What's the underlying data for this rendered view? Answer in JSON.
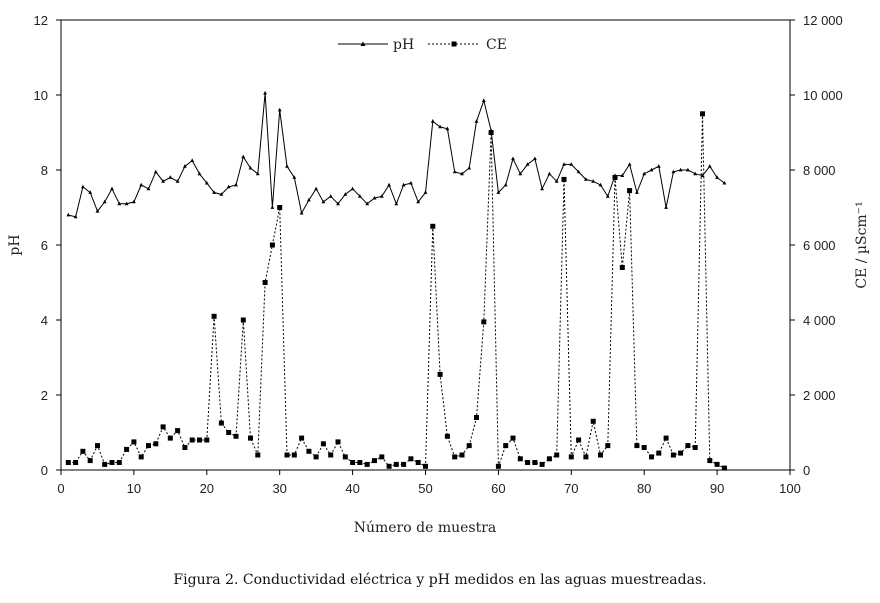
{
  "caption": "Figura 2. Conductividad eléctrica y pH medidos en las aguas muestreadas.",
  "chart_data": {
    "type": "line",
    "xlabel": "Número de muestra",
    "ylabel_left": "pH",
    "ylabel_right": "CE / µScm⁻¹",
    "xlim": [
      0,
      100
    ],
    "ylim_left": [
      0,
      12
    ],
    "ylim_right": [
      0,
      12000
    ],
    "xticks": [
      "0",
      "10",
      "20",
      "30",
      "40",
      "50",
      "60",
      "70",
      "80",
      "90",
      "100"
    ],
    "yticks_left": [
      "0",
      "2",
      "4",
      "6",
      "8",
      "10",
      "12"
    ],
    "yticks_right": [
      "0",
      "2 000",
      "4 000",
      "6 000",
      "8 000",
      "10 000",
      "12 000"
    ],
    "grid": false,
    "legend_position": "top-center",
    "series": [
      {
        "name": "pH",
        "axis": "left",
        "style": "solid",
        "marker": "triangle",
        "color": "#000000",
        "x": [
          1,
          2,
          3,
          4,
          5,
          6,
          7,
          8,
          9,
          10,
          11,
          12,
          13,
          14,
          15,
          16,
          17,
          18,
          19,
          20,
          21,
          22,
          23,
          24,
          25,
          26,
          27,
          28,
          29,
          30,
          31,
          32,
          33,
          34,
          35,
          36,
          37,
          38,
          39,
          40,
          41,
          42,
          43,
          44,
          45,
          46,
          47,
          48,
          49,
          50,
          51,
          52,
          53,
          54,
          55,
          56,
          57,
          58,
          59,
          60,
          61,
          62,
          63,
          64,
          65,
          66,
          67,
          68,
          69,
          70,
          71,
          72,
          73,
          74,
          75,
          76,
          77,
          78,
          79,
          80,
          81,
          82,
          83,
          84,
          85,
          86,
          87,
          88,
          89,
          90,
          91
        ],
        "values": [
          6.8,
          6.75,
          7.55,
          7.4,
          6.9,
          7.15,
          7.5,
          7.1,
          7.1,
          7.15,
          7.6,
          7.5,
          7.95,
          7.7,
          7.8,
          7.7,
          8.1,
          8.25,
          7.9,
          7.65,
          7.4,
          7.35,
          7.55,
          7.6,
          8.35,
          8.05,
          7.9,
          10.05,
          7.0,
          9.6,
          8.1,
          7.8,
          6.85,
          7.2,
          7.5,
          7.15,
          7.3,
          7.1,
          7.35,
          7.5,
          7.3,
          7.1,
          7.25,
          7.3,
          7.6,
          7.1,
          7.6,
          7.65,
          7.15,
          7.4,
          9.3,
          9.15,
          9.1,
          7.95,
          7.9,
          8.05,
          9.3,
          9.85,
          9.05,
          7.4,
          7.6,
          8.3,
          7.9,
          8.15,
          8.3,
          7.5,
          7.9,
          7.7,
          8.15,
          8.15,
          7.95,
          7.75,
          7.7,
          7.6,
          7.3,
          7.85,
          7.85,
          8.15,
          7.4,
          7.9,
          8.0,
          8.1,
          7.0,
          7.95,
          8.0,
          8.0,
          7.9,
          7.85,
          8.1,
          7.8,
          7.65
        ]
      },
      {
        "name": "CE",
        "axis": "right",
        "style": "dashed",
        "marker": "square",
        "color": "#000000",
        "x": [
          1,
          2,
          3,
          4,
          5,
          6,
          7,
          8,
          9,
          10,
          11,
          12,
          13,
          14,
          15,
          16,
          17,
          18,
          19,
          20,
          21,
          22,
          23,
          24,
          25,
          26,
          27,
          28,
          29,
          30,
          31,
          32,
          33,
          34,
          35,
          36,
          37,
          38,
          39,
          40,
          41,
          42,
          43,
          44,
          45,
          46,
          47,
          48,
          49,
          50,
          51,
          52,
          53,
          54,
          55,
          56,
          57,
          58,
          59,
          60,
          61,
          62,
          63,
          64,
          65,
          66,
          67,
          68,
          69,
          70,
          71,
          72,
          73,
          74,
          75,
          76,
          77,
          78,
          79,
          80,
          81,
          82,
          83,
          84,
          85,
          86,
          87,
          88,
          89,
          90,
          91
        ],
        "values": [
          200,
          200,
          500,
          250,
          650,
          150,
          200,
          200,
          550,
          750,
          350,
          650,
          700,
          1150,
          850,
          1050,
          600,
          800,
          800,
          800,
          4100,
          1250,
          1000,
          900,
          4000,
          850,
          400,
          5000,
          6000,
          7000,
          400,
          400,
          850,
          500,
          350,
          700,
          400,
          750,
          350,
          200,
          200,
          150,
          250,
          350,
          100,
          150,
          150,
          300,
          200,
          100,
          6500,
          2550,
          900,
          350,
          400,
          650,
          1400,
          3950,
          9000,
          100,
          650,
          850,
          300,
          200,
          200,
          150,
          300,
          400,
          7750,
          350,
          800,
          350,
          1300,
          400,
          650,
          7800,
          5400,
          7450,
          650,
          600,
          350,
          450,
          850,
          400,
          450,
          650,
          600,
          9500,
          250,
          150,
          50
        ]
      }
    ]
  }
}
